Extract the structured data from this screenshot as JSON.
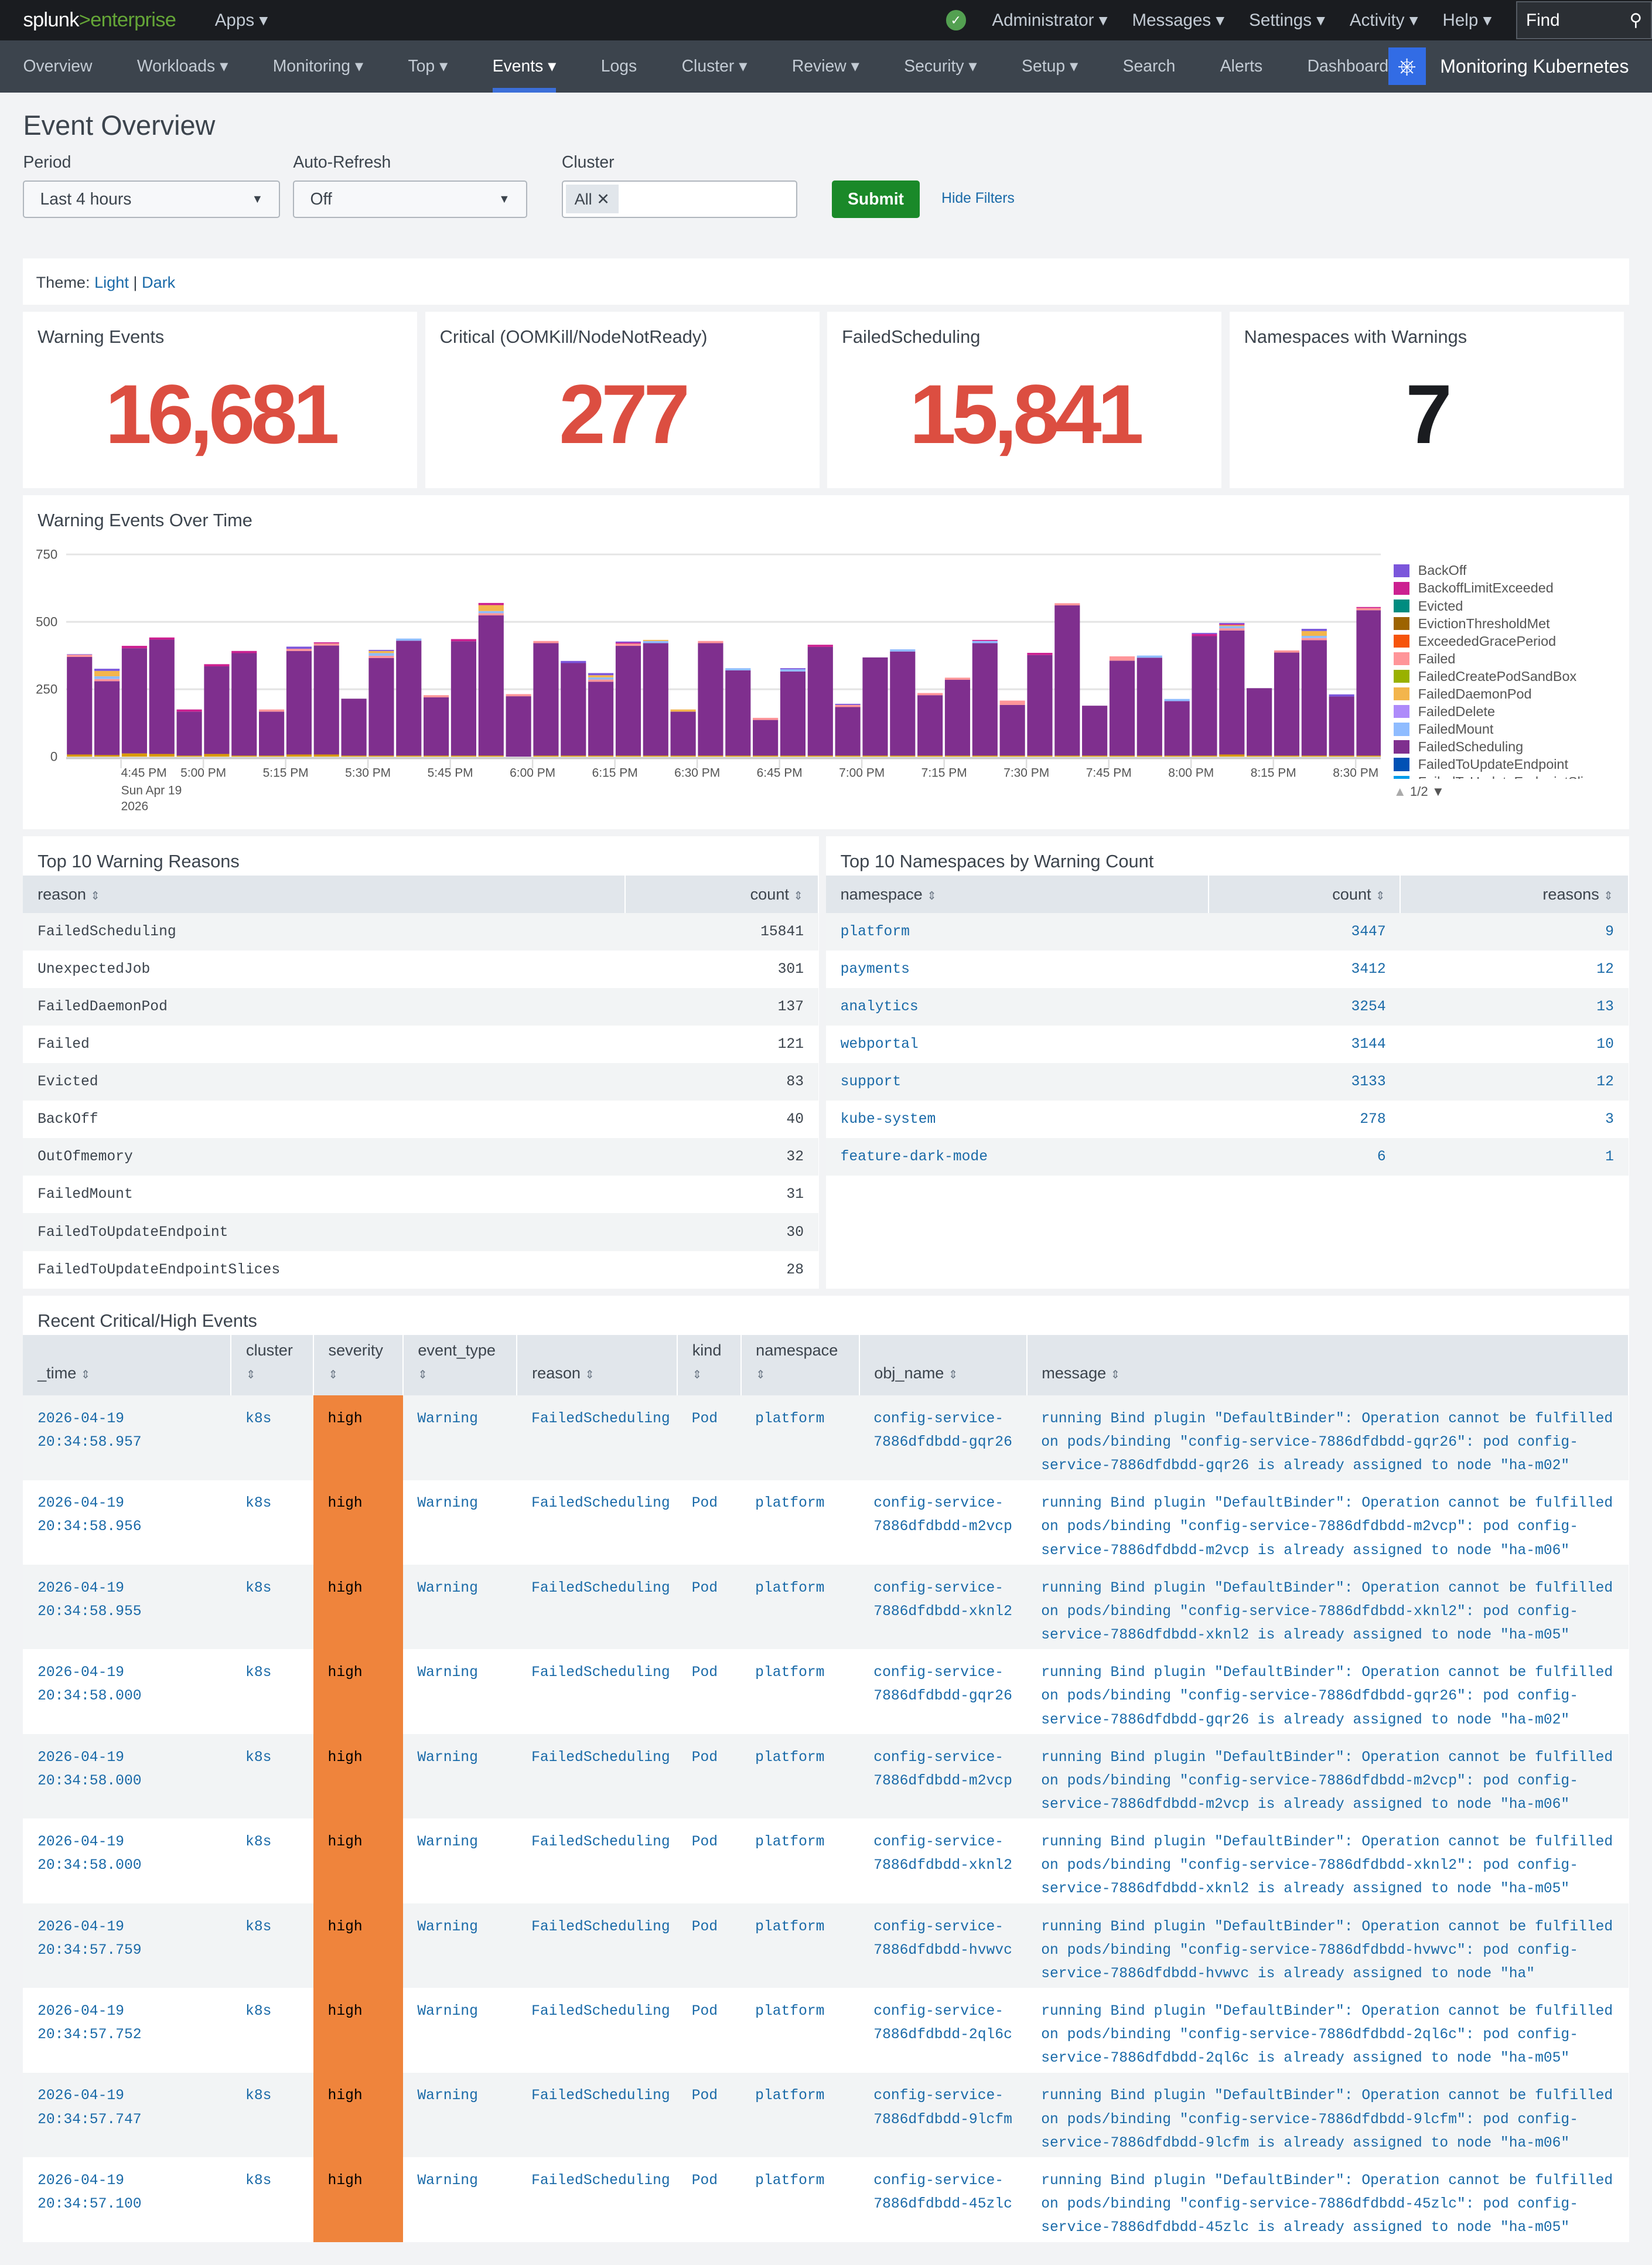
{
  "topbar": {
    "logo_a": "splunk",
    "logo_b": ">enterprise",
    "apps": "Apps ▾",
    "menus": [
      "Administrator ▾",
      "Messages ▾",
      "Settings ▾",
      "Activity ▾",
      "Help ▾"
    ],
    "find": "Find"
  },
  "nav": {
    "items": [
      "Overview",
      "Workloads ▾",
      "Monitoring ▾",
      "Top ▾",
      "Events ▾",
      "Logs",
      "Cluster ▾",
      "Review ▾",
      "Security ▾",
      "Setup ▾",
      "Search",
      "Alerts",
      "Dashboards"
    ],
    "active": "Events ▾",
    "app_name": "Monitoring Kubernetes"
  },
  "page": {
    "title": "Event Overview"
  },
  "filters": {
    "period_label": "Period",
    "period_value": "Last 4 hours",
    "refresh_label": "Auto-Refresh",
    "refresh_value": "Off",
    "cluster_label": "Cluster",
    "cluster_token": "All",
    "submit": "Submit",
    "hide_filters": "Hide Filters"
  },
  "theme": {
    "label": "Theme:",
    "light": "Light",
    "sep": "|",
    "dark": "Dark"
  },
  "singles": [
    {
      "title": "Warning Events",
      "value": "16,681",
      "color": "#dc4e41"
    },
    {
      "title": "Critical (OOMKill/NodeNotReady)",
      "value": "277",
      "color": "#dc4e41"
    },
    {
      "title": "FailedScheduling",
      "value": "15,841",
      "color": "#dc4e41"
    },
    {
      "title": "Namespaces with Warnings",
      "value": "7",
      "color": "#1a1c20"
    }
  ],
  "chart_panel": {
    "title": "Warning Events Over Time",
    "pager": "1/2"
  },
  "chart_data": {
    "type": "bar",
    "stacked": true,
    "ylim": [
      0,
      750
    ],
    "yticks": [
      "0",
      "250",
      "500",
      "750"
    ],
    "grid": true,
    "legend": "right",
    "categories": [
      "4:35 PM",
      "4:40 PM",
      "4:45 PM",
      "4:50 PM",
      "4:55 PM",
      "5:00 PM",
      "5:05 PM",
      "5:10 PM",
      "5:15 PM",
      "5:20 PM",
      "5:25 PM",
      "5:30 PM",
      "5:35 PM",
      "5:40 PM",
      "5:45 PM",
      "5:50 PM",
      "5:55 PM",
      "6:00 PM",
      "6:05 PM",
      "6:10 PM",
      "6:15 PM",
      "6:20 PM",
      "6:25 PM",
      "6:30 PM",
      "6:35 PM",
      "6:40 PM",
      "6:45 PM",
      "6:50 PM",
      "6:55 PM",
      "7:00 PM",
      "7:05 PM",
      "7:10 PM",
      "7:15 PM",
      "7:20 PM",
      "7:25 PM",
      "7:30 PM",
      "7:35 PM",
      "7:40 PM",
      "7:45 PM",
      "7:50 PM",
      "7:55 PM",
      "8:00 PM",
      "8:05 PM",
      "8:10 PM",
      "8:15 PM",
      "8:20 PM",
      "8:25 PM",
      "8:30 PM"
    ],
    "xtick_labels": [
      "4:45 PM",
      "5:00 PM",
      "5:15 PM",
      "5:30 PM",
      "5:45 PM",
      "6:00 PM",
      "6:15 PM",
      "6:30 PM",
      "6:45 PM",
      "7:00 PM",
      "7:15 PM",
      "7:30 PM",
      "7:45 PM",
      "8:00 PM",
      "8:15 PM",
      "8:30 PM"
    ],
    "xdate": [
      "Sun Apr 19",
      "2026"
    ],
    "series": [
      {
        "name": "FailedDaemonPod",
        "color": "#d99a00",
        "values": [
          8,
          6,
          12,
          10,
          4,
          10,
          4,
          4,
          8,
          8,
          4,
          4,
          4,
          4,
          4,
          4,
          0,
          4,
          4,
          4,
          4,
          4,
          4,
          4,
          4,
          4,
          4,
          4,
          4,
          4,
          4,
          4,
          4,
          4,
          4,
          4,
          4,
          4,
          4,
          4,
          4,
          4,
          8,
          4,
          4,
          4,
          4,
          4
        ]
      },
      {
        "name": "FailedScheduling",
        "color": "#7f2f8e",
        "values": [
          362,
          274,
          390,
          424,
          163,
          325,
          380,
          163,
          384,
          404,
          211,
          362,
          426,
          216,
          424,
          520,
          224,
          417,
          343,
          274,
          407,
          417,
          163,
          417,
          316,
          132,
          312,
          403,
          180,
          364,
          386,
          224,
          281,
          417,
          188,
          373,
          557,
          185,
          352,
          363,
          202,
          443,
          460,
          250,
          382,
          428,
          219,
          539
        ]
      },
      {
        "name": "Failed",
        "color": "#ff9599",
        "values": [
          8,
          8,
          0,
          0,
          0,
          0,
          0,
          8,
          8,
          8,
          0,
          8,
          0,
          8,
          0,
          8,
          8,
          8,
          0,
          8,
          8,
          0,
          0,
          8,
          0,
          8,
          0,
          0,
          8,
          0,
          0,
          8,
          8,
          0,
          16,
          0,
          8,
          0,
          16,
          0,
          0,
          0,
          8,
          0,
          8,
          8,
          0,
          8
        ]
      },
      {
        "name": "FailedMount",
        "color": "#8fbcff",
        "values": [
          0,
          10,
          0,
          0,
          0,
          0,
          0,
          0,
          0,
          0,
          0,
          10,
          8,
          0,
          0,
          8,
          0,
          0,
          0,
          8,
          0,
          8,
          0,
          0,
          8,
          0,
          8,
          0,
          0,
          0,
          8,
          0,
          0,
          8,
          0,
          0,
          0,
          0,
          0,
          8,
          8,
          0,
          8,
          0,
          0,
          8,
          0,
          0
        ]
      },
      {
        "name": "FailedDaemonPod ",
        "color": "#f3b54c",
        "values": [
          0,
          20,
          0,
          0,
          0,
          0,
          0,
          0,
          0,
          0,
          0,
          8,
          0,
          0,
          0,
          22,
          0,
          0,
          0,
          8,
          0,
          4,
          8,
          0,
          0,
          0,
          0,
          0,
          0,
          0,
          0,
          0,
          0,
          0,
          0,
          0,
          0,
          0,
          0,
          0,
          0,
          0,
          4,
          0,
          0,
          18,
          0,
          0
        ]
      },
      {
        "name": "BackoffLimitExceeded",
        "color": "#cc2090",
        "values": [
          0,
          0,
          9,
          8,
          8,
          8,
          8,
          0,
          0,
          4,
          0,
          0,
          0,
          0,
          8,
          8,
          0,
          0,
          0,
          0,
          4,
          0,
          0,
          0,
          0,
          0,
          0,
          8,
          0,
          0,
          0,
          0,
          0,
          4,
          0,
          8,
          0,
          0,
          0,
          0,
          0,
          8,
          4,
          0,
          0,
          0,
          0,
          4
        ]
      },
      {
        "name": "BackOff",
        "color": "#7b56db",
        "values": [
          2,
          8,
          0,
          0,
          0,
          0,
          0,
          0,
          8,
          0,
          0,
          4,
          0,
          0,
          0,
          0,
          0,
          0,
          8,
          8,
          4,
          0,
          0,
          0,
          0,
          0,
          4,
          0,
          4,
          0,
          0,
          0,
          0,
          0,
          0,
          0,
          0,
          0,
          0,
          0,
          0,
          4,
          4,
          0,
          0,
          8,
          8,
          0
        ]
      }
    ]
  },
  "legend": [
    {
      "name": "BackOff",
      "color": "#7b56db"
    },
    {
      "name": "BackoffLimitExceeded",
      "color": "#cc2090"
    },
    {
      "name": "Evicted",
      "color": "#008c80"
    },
    {
      "name": "EvictionThresholdMet",
      "color": "#9d6300"
    },
    {
      "name": "ExceededGracePeriod",
      "color": "#f6540b"
    },
    {
      "name": "Failed",
      "color": "#ff9599"
    },
    {
      "name": "FailedCreatePodSandBox",
      "color": "#99b100"
    },
    {
      "name": "FailedDaemonPod",
      "color": "#f3b54c"
    },
    {
      "name": "FailedDelete",
      "color": "#ae8bfa"
    },
    {
      "name": "FailedMount",
      "color": "#8fbcff"
    },
    {
      "name": "FailedScheduling",
      "color": "#7f2f8e"
    },
    {
      "name": "FailedToUpdateEndpoint",
      "color": "#0051b5"
    },
    {
      "name": "FailedToUpdateEndpointSlices",
      "color": "#009ceb"
    }
  ],
  "reasons": {
    "title": "Top 10 Warning Reasons",
    "headers": [
      "reason",
      "count"
    ],
    "rows": [
      [
        "FailedScheduling",
        "15841"
      ],
      [
        "UnexpectedJob",
        "301"
      ],
      [
        "FailedDaemonPod",
        "137"
      ],
      [
        "Failed",
        "121"
      ],
      [
        "Evicted",
        "83"
      ],
      [
        "BackOff",
        "40"
      ],
      [
        "OutOfmemory",
        "32"
      ],
      [
        "FailedMount",
        "31"
      ],
      [
        "FailedToUpdateEndpoint",
        "30"
      ],
      [
        "FailedToUpdateEndpointSlices",
        "28"
      ]
    ]
  },
  "namespaces": {
    "title": "Top 10 Namespaces by Warning Count",
    "headers": [
      "namespace",
      "count",
      "reasons"
    ],
    "rows": [
      [
        "platform",
        "3447",
        "9"
      ],
      [
        "payments",
        "3412",
        "12"
      ],
      [
        "analytics",
        "3254",
        "13"
      ],
      [
        "webportal",
        "3144",
        "10"
      ],
      [
        "support",
        "3133",
        "12"
      ],
      [
        "kube-system",
        "278",
        "3"
      ],
      [
        "feature-dark-mode",
        "6",
        "1"
      ]
    ]
  },
  "events": {
    "title": "Recent Critical/High Events",
    "headers": [
      "_time",
      "cluster",
      "severity",
      "event_type",
      "reason",
      "kind",
      "namespace",
      "obj_name",
      "message"
    ],
    "severity_color": "#ef843c",
    "rows": [
      [
        "2026-04-19 20:34:58.957",
        "k8s",
        "high",
        "Warning",
        "FailedScheduling",
        "Pod",
        "platform",
        "config-service-7886dfdbdd-gqr26",
        "running Bind plugin \"DefaultBinder\": Operation cannot be fulfilled on pods/binding \"config-service-7886dfdbdd-gqr26\": pod config-service-7886dfdbdd-gqr26 is already assigned to node \"ha-m02\""
      ],
      [
        "2026-04-19 20:34:58.956",
        "k8s",
        "high",
        "Warning",
        "FailedScheduling",
        "Pod",
        "platform",
        "config-service-7886dfdbdd-m2vcp",
        "running Bind plugin \"DefaultBinder\": Operation cannot be fulfilled on pods/binding \"config-service-7886dfdbdd-m2vcp\": pod config-service-7886dfdbdd-m2vcp is already assigned to node \"ha-m06\""
      ],
      [
        "2026-04-19 20:34:58.955",
        "k8s",
        "high",
        "Warning",
        "FailedScheduling",
        "Pod",
        "platform",
        "config-service-7886dfdbdd-xknl2",
        "running Bind plugin \"DefaultBinder\": Operation cannot be fulfilled on pods/binding \"config-service-7886dfdbdd-xknl2\": pod config-service-7886dfdbdd-xknl2 is already assigned to node \"ha-m05\""
      ],
      [
        "2026-04-19 20:34:58.000",
        "k8s",
        "high",
        "Warning",
        "FailedScheduling",
        "Pod",
        "platform",
        "config-service-7886dfdbdd-gqr26",
        "running Bind plugin \"DefaultBinder\": Operation cannot be fulfilled on pods/binding \"config-service-7886dfdbdd-gqr26\": pod config-service-7886dfdbdd-gqr26 is already assigned to node \"ha-m02\""
      ],
      [
        "2026-04-19 20:34:58.000",
        "k8s",
        "high",
        "Warning",
        "FailedScheduling",
        "Pod",
        "platform",
        "config-service-7886dfdbdd-m2vcp",
        "running Bind plugin \"DefaultBinder\": Operation cannot be fulfilled on pods/binding \"config-service-7886dfdbdd-m2vcp\": pod config-service-7886dfdbdd-m2vcp is already assigned to node \"ha-m06\""
      ],
      [
        "2026-04-19 20:34:58.000",
        "k8s",
        "high",
        "Warning",
        "FailedScheduling",
        "Pod",
        "platform",
        "config-service-7886dfdbdd-xknl2",
        "running Bind plugin \"DefaultBinder\": Operation cannot be fulfilled on pods/binding \"config-service-7886dfdbdd-xknl2\": pod config-service-7886dfdbdd-xknl2 is already assigned to node \"ha-m05\""
      ],
      [
        "2026-04-19 20:34:57.759",
        "k8s",
        "high",
        "Warning",
        "FailedScheduling",
        "Pod",
        "platform",
        "config-service-7886dfdbdd-hvwvc",
        "running Bind plugin \"DefaultBinder\": Operation cannot be fulfilled on pods/binding \"config-service-7886dfdbdd-hvwvc\": pod config-service-7886dfdbdd-hvwvc is already assigned to node \"ha\""
      ],
      [
        "2026-04-19 20:34:57.752",
        "k8s",
        "high",
        "Warning",
        "FailedScheduling",
        "Pod",
        "platform",
        "config-service-7886dfdbdd-2ql6c",
        "running Bind plugin \"DefaultBinder\": Operation cannot be fulfilled on pods/binding \"config-service-7886dfdbdd-2ql6c\": pod config-service-7886dfdbdd-2ql6c is already assigned to node \"ha-m05\""
      ],
      [
        "2026-04-19 20:34:57.747",
        "k8s",
        "high",
        "Warning",
        "FailedScheduling",
        "Pod",
        "platform",
        "config-service-7886dfdbdd-9lcfm",
        "running Bind plugin \"DefaultBinder\": Operation cannot be fulfilled on pods/binding \"config-service-7886dfdbdd-9lcfm\": pod config-service-7886dfdbdd-9lcfm is already assigned to node \"ha-m06\""
      ],
      [
        "2026-04-19 20:34:57.100",
        "k8s",
        "high",
        "Warning",
        "FailedScheduling",
        "Pod",
        "platform",
        "config-service-7886dfdbdd-45zlc",
        "running Bind plugin \"DefaultBinder\": Operation cannot be fulfilled on pods/binding \"config-service-7886dfdbdd-45zlc\": pod config-service-7886dfdbdd-45zlc is already assigned to node \"ha-m05\""
      ]
    ]
  }
}
